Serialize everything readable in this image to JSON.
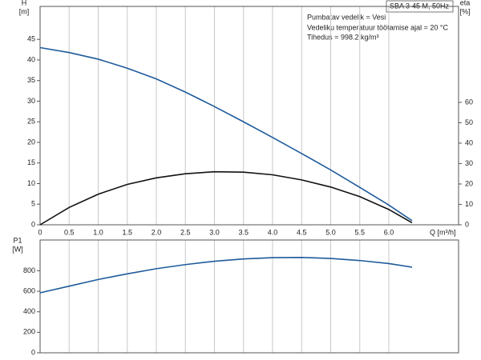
{
  "chart_data": [
    {
      "type": "line",
      "title": "SBA 3-45 M, 50Hz",
      "annotations": [
        "Pumbatav vedelik = Vesi",
        "Vedeliku temperatuur töötamise ajal = 20 °C",
        "Tihedus = 998.2 kg/m³"
      ],
      "y_label": "H",
      "y_unit": "[m]",
      "y2_label": "eta",
      "y2_unit": "[%]",
      "x_label": "Q [m³/h]",
      "x": [
        0,
        0.5,
        1,
        1.5,
        2,
        2.5,
        3,
        3.5,
        4,
        4.5,
        5,
        5.5,
        6,
        6.4
      ],
      "series": [
        {
          "name": "H",
          "color": "#1f5b9c",
          "values": [
            43,
            41.8,
            40.2,
            38,
            35.4,
            32.2,
            28.7,
            25,
            21.2,
            17.3,
            13.3,
            9.1,
            4.8,
            1.0
          ]
        },
        {
          "name": "eta",
          "color": "#111111",
          "axis": "y2",
          "values": [
            0,
            8.5,
            15,
            19.8,
            23,
            25,
            26,
            25.8,
            24.5,
            22,
            18.5,
            13.8,
            7.5,
            1
          ]
        }
      ],
      "xlim": [
        0,
        7.2
      ],
      "xticks": [
        0,
        0.5,
        {
          "value": 1,
          "label": "1.0"
        },
        1.5,
        {
          "value": 2,
          "label": "2.0"
        },
        2.5,
        {
          "value": 3,
          "label": "3.0"
        },
        3.5,
        {
          "value": 4,
          "label": "4.0"
        },
        4.5,
        {
          "value": 5,
          "label": "5.0"
        },
        5.5,
        {
          "value": 6,
          "label": "6.0"
        }
      ],
      "ylim": [
        0,
        53
      ],
      "yticks": [
        0,
        5,
        10,
        15,
        20,
        25,
        30,
        35,
        40,
        45
      ],
      "y2lim": [
        0,
        107
      ],
      "y2ticks": [
        0,
        10,
        20,
        30,
        40,
        50,
        60
      ],
      "grid": true
    },
    {
      "type": "line",
      "y_label": "P1",
      "y_unit": "[W]",
      "x": [
        0,
        0.5,
        1,
        1.5,
        2,
        2.5,
        3,
        3.5,
        4,
        4.5,
        5,
        5.5,
        6,
        6.4
      ],
      "series": [
        {
          "name": "P1",
          "color": "#1f5b9c",
          "values": [
            585,
            650,
            715,
            770,
            820,
            860,
            893,
            915,
            928,
            930,
            920,
            900,
            870,
            835
          ]
        }
      ],
      "xlim": [
        0,
        7.2
      ],
      "ylim": [
        0,
        1100
      ],
      "yticks": [
        0,
        200,
        400,
        600,
        800
      ],
      "grid": true
    }
  ]
}
